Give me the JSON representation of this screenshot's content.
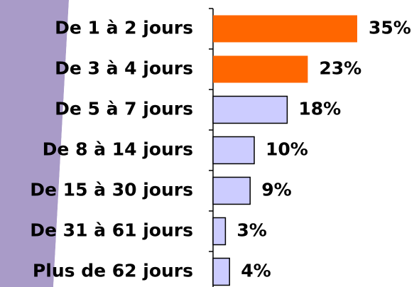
{
  "chart_data": {
    "type": "bar",
    "orientation": "horizontal",
    "categories": [
      "De 1 à 2 jours",
      "De 3 à 4 jours",
      "De 5 à 7 jours",
      "De 8 à 14 jours",
      "De 15 à 30 jours",
      "De 31 à 61 jours",
      "Plus de 62 jours"
    ],
    "values": [
      35,
      23,
      18,
      10,
      9,
      3,
      4
    ],
    "value_labels": [
      "35%",
      "23%",
      "18%",
      "10%",
      "9%",
      "3%",
      "4%"
    ],
    "colors": [
      "#ff6600",
      "#ff6600",
      "#ccccff",
      "#ccccff",
      "#ccccff",
      "#ccccff",
      "#ccccff"
    ]
  }
}
